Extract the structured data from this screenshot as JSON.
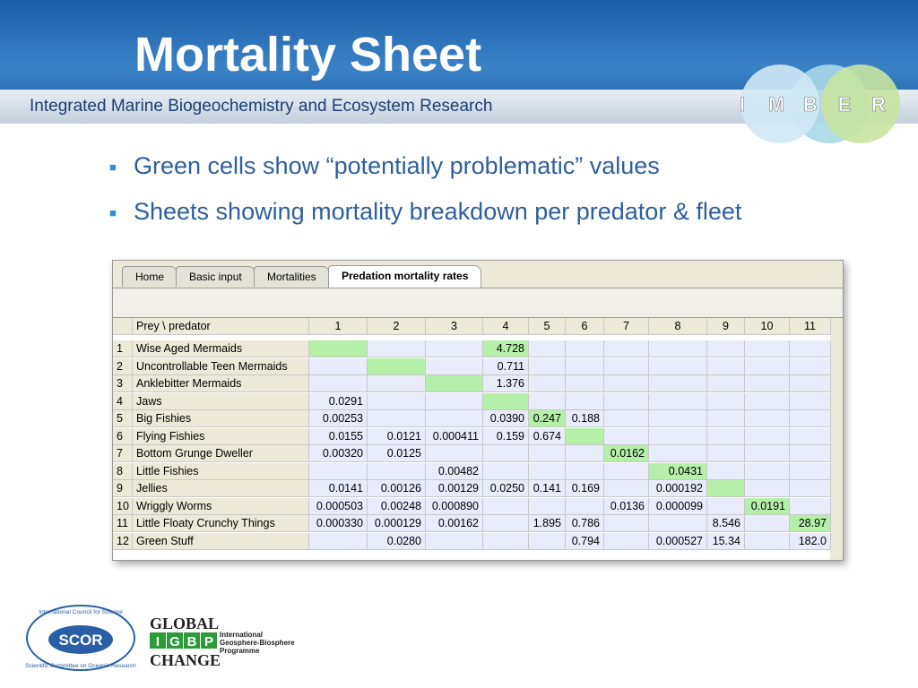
{
  "header": {
    "title": "Mortality Sheet",
    "subtitle": "Integrated Marine Biogeochemistry and Ecosystem Research",
    "logo_letters": [
      "I",
      "M",
      "B",
      "E",
      "R"
    ]
  },
  "bullets": [
    "Green cells show “potentially problematic” values",
    "Sheets showing mortality breakdown per predator & fleet"
  ],
  "window": {
    "tabs": [
      "Home",
      "Basic input",
      "Mortalities",
      "Predation mortality rates"
    ],
    "active_tab": 3,
    "table": {
      "corner": "Prey \\ predator",
      "columns": [
        "1",
        "2",
        "3",
        "4",
        "5",
        "6",
        "7",
        "8",
        "9",
        "10",
        "11"
      ],
      "highlight_color": "#b4f0a8",
      "rows": [
        {
          "index": "1",
          "name": "Wise Aged Mermaids",
          "cells": [
            null,
            null,
            null,
            "4.728",
            null,
            null,
            null,
            null,
            null,
            null,
            null
          ],
          "highlighted": [
            0,
            3
          ]
        },
        {
          "index": "2",
          "name": "Uncontrollable Teen Mermaids",
          "cells": [
            null,
            null,
            null,
            "0.711",
            null,
            null,
            null,
            null,
            null,
            null,
            null
          ],
          "highlighted": [
            1
          ]
        },
        {
          "index": "3",
          "name": "Anklebitter Mermaids",
          "cells": [
            null,
            null,
            null,
            "1.376",
            null,
            null,
            null,
            null,
            null,
            null,
            null
          ],
          "highlighted": [
            2
          ]
        },
        {
          "index": "4",
          "name": "Jaws",
          "cells": [
            "0.0291",
            null,
            null,
            null,
            null,
            null,
            null,
            null,
            null,
            null,
            null
          ],
          "highlighted": [
            3
          ]
        },
        {
          "index": "5",
          "name": "Big Fishies",
          "cells": [
            "0.00253",
            null,
            null,
            "0.0390",
            "0.247",
            "0.188",
            null,
            null,
            null,
            null,
            null
          ],
          "highlighted": [
            4
          ]
        },
        {
          "index": "6",
          "name": "Flying Fishies",
          "cells": [
            "0.0155",
            "0.0121",
            "0.000411",
            "0.159",
            "0.674",
            null,
            null,
            null,
            null,
            null,
            null
          ],
          "highlighted": [
            5
          ]
        },
        {
          "index": "7",
          "name": "Bottom Grunge Dweller",
          "cells": [
            "0.00320",
            "0.0125",
            null,
            null,
            null,
            null,
            "0.0162",
            null,
            null,
            null,
            null
          ],
          "highlighted": [
            6
          ]
        },
        {
          "index": "8",
          "name": "Little Fishies",
          "cells": [
            null,
            null,
            "0.00482",
            null,
            null,
            null,
            null,
            "0.0431",
            null,
            null,
            null
          ],
          "highlighted": [
            7
          ]
        },
        {
          "index": "9",
          "name": "Jellies",
          "cells": [
            "0.0141",
            "0.00126",
            "0.00129",
            "0.0250",
            "0.141",
            "0.169",
            null,
            "0.000192",
            null,
            null,
            null
          ],
          "highlighted": [
            8
          ]
        },
        {
          "index": "10",
          "name": "Wriggly Worms",
          "cells": [
            "0.000503",
            "0.00248",
            "0.000890",
            null,
            null,
            null,
            "0.0136",
            "0.000099",
            null,
            "0.0191",
            null
          ],
          "highlighted": [
            9
          ]
        },
        {
          "index": "11",
          "name": "Little Floaty Crunchy Things",
          "cells": [
            "0.000330",
            "0.000129",
            "0.00162",
            null,
            "1.895",
            "0.786",
            null,
            null,
            "8.546",
            null,
            "28.97"
          ],
          "highlighted": [
            10
          ]
        },
        {
          "index": "12",
          "name": "Green Stuff",
          "cells": [
            null,
            "0.0280",
            null,
            null,
            null,
            "0.794",
            null,
            "0.000527",
            "15.34",
            null,
            "182.0"
          ],
          "highlighted": []
        }
      ]
    }
  },
  "footer": {
    "scor": "SCOR",
    "scor_ring_top": "International Council for Science",
    "scor_ring_bottom": "Scientific Committee on Oceanic Research",
    "igbp_top": "GLOBAL",
    "igbp_letters": [
      "I",
      "G",
      "B",
      "P"
    ],
    "igbp_bottom": "CHANGE",
    "igbp_name": [
      "International",
      "Geosphere-Biosphere",
      "Programme"
    ]
  }
}
